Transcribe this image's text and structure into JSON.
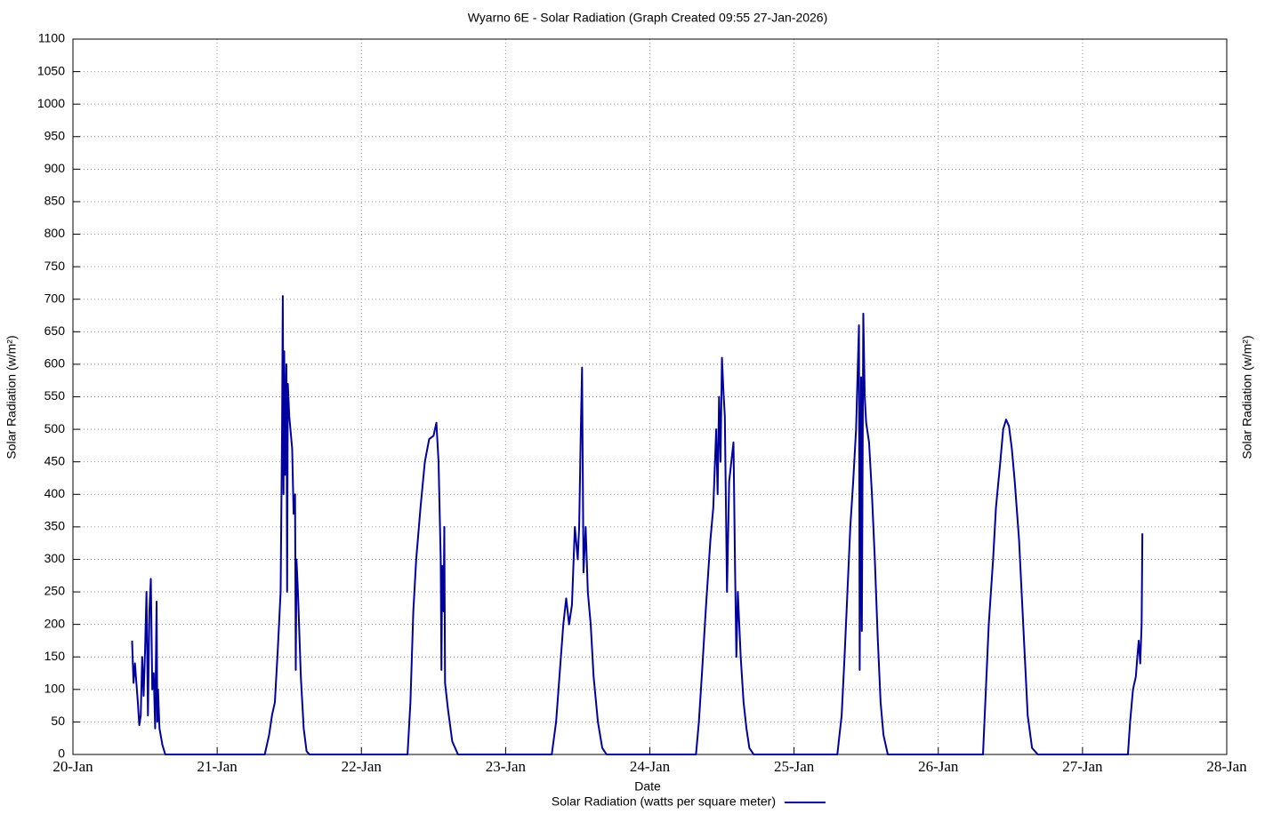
{
  "chart_data": {
    "type": "line",
    "title": "Wyarno 6E - Solar Radiation (Graph Created 09:55 27-Jan-2026)",
    "xlabel": "Date",
    "ylabel": "Solar Radiation (w/m²)",
    "x": [
      0.41,
      0.42,
      0.43,
      0.45,
      0.46,
      0.47,
      0.48,
      0.49,
      0.5,
      0.51,
      0.52,
      0.53,
      0.54,
      0.55,
      0.56,
      0.57,
      0.58,
      0.585,
      0.59,
      0.6,
      0.62,
      0.64,
      1.33,
      1.36,
      1.38,
      1.4,
      1.42,
      1.44,
      1.45,
      1.455,
      1.46,
      1.465,
      1.47,
      1.48,
      1.485,
      1.49,
      1.5,
      1.52,
      1.53,
      1.54,
      1.545,
      1.55,
      1.56,
      1.58,
      1.6,
      1.62,
      1.64,
      2.32,
      2.34,
      2.36,
      2.38,
      2.41,
      2.44,
      2.47,
      2.5,
      2.52,
      2.535,
      2.55,
      2.555,
      2.56,
      2.57,
      2.575,
      2.58,
      2.6,
      2.63,
      2.67,
      3.32,
      3.35,
      3.37,
      3.4,
      3.42,
      3.44,
      3.46,
      3.48,
      3.5,
      3.51,
      3.52,
      3.53,
      3.54,
      3.555,
      3.57,
      3.59,
      3.61,
      3.64,
      3.67,
      3.7,
      4.32,
      4.34,
      4.36,
      4.39,
      4.42,
      4.44,
      4.46,
      4.47,
      4.48,
      4.49,
      4.5,
      4.51,
      4.52,
      4.535,
      4.55,
      4.58,
      4.59,
      4.6,
      4.61,
      4.63,
      4.65,
      4.67,
      4.69,
      4.72,
      5.3,
      5.33,
      5.35,
      5.37,
      5.39,
      5.41,
      5.43,
      5.45,
      5.455,
      5.465,
      5.47,
      5.48,
      5.49,
      5.5,
      5.52,
      5.54,
      5.56,
      5.58,
      5.6,
      5.62,
      5.65,
      6.31,
      6.33,
      6.35,
      6.38,
      6.4,
      6.43,
      6.45,
      6.47,
      6.49,
      6.51,
      6.53,
      6.56,
      6.58,
      6.6,
      6.62,
      6.65,
      6.69,
      7.315,
      7.33,
      7.35,
      7.37,
      7.38,
      7.39,
      7.4,
      7.41,
      7.415
    ],
    "series": [
      {
        "name": "Solar Radiation (watts per square meter)",
        "color": "#0000a0",
        "values": [
          175,
          110,
          140,
          80,
          45,
          60,
          150,
          90,
          160,
          250,
          60,
          220,
          270,
          100,
          125,
          40,
          235,
          50,
          100,
          40,
          15,
          0,
          0,
          30,
          60,
          80,
          160,
          250,
          500,
          705,
          400,
          620,
          430,
          600,
          250,
          570,
          520,
          470,
          370,
          400,
          130,
          300,
          250,
          120,
          40,
          5,
          0,
          0,
          80,
          220,
          300,
          380,
          450,
          485,
          490,
          510,
          450,
          300,
          130,
          290,
          220,
          350,
          110,
          70,
          20,
          0,
          0,
          50,
          110,
          200,
          240,
          200,
          230,
          350,
          300,
          350,
          480,
          595,
          280,
          350,
          250,
          200,
          120,
          50,
          10,
          0,
          0,
          50,
          120,
          230,
          330,
          380,
          500,
          400,
          550,
          450,
          610,
          560,
          520,
          250,
          420,
          480,
          300,
          150,
          250,
          150,
          80,
          40,
          10,
          0,
          0,
          60,
          150,
          250,
          350,
          420,
          500,
          660,
          130,
          580,
          190,
          678,
          550,
          510,
          480,
          400,
          300,
          180,
          80,
          30,
          0,
          0,
          100,
          200,
          300,
          380,
          450,
          500,
          515,
          505,
          470,
          420,
          330,
          240,
          150,
          60,
          10,
          0,
          0,
          50,
          100,
          120,
          150,
          175,
          140,
          200,
          340
        ]
      }
    ],
    "xlim": [
      0,
      8
    ],
    "xticks": [
      {
        "value": 0,
        "label": "20-Jan"
      },
      {
        "value": 1,
        "label": "21-Jan"
      },
      {
        "value": 2,
        "label": "22-Jan"
      },
      {
        "value": 3,
        "label": "23-Jan"
      },
      {
        "value": 4,
        "label": "24-Jan"
      },
      {
        "value": 5,
        "label": "25-Jan"
      },
      {
        "value": 6,
        "label": "26-Jan"
      },
      {
        "value": 7,
        "label": "27-Jan"
      },
      {
        "value": 8,
        "label": "28-Jan"
      }
    ],
    "ylim": [
      0,
      1100
    ],
    "yticks": [
      0,
      50,
      100,
      150,
      200,
      250,
      300,
      350,
      400,
      450,
      500,
      550,
      600,
      650,
      700,
      750,
      800,
      850,
      900,
      950,
      1000,
      1050,
      1100
    ],
    "grid": true
  }
}
